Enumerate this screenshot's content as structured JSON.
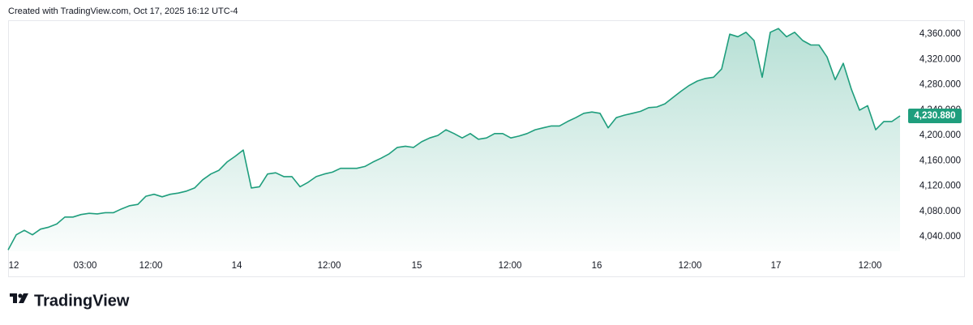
{
  "header": {
    "text": "Created with TradingView.com, Oct 17, 2025 16:12 UTC-4"
  },
  "footer": {
    "brand": "TradingView"
  },
  "chart_data": {
    "type": "area",
    "color": "#1f9e7d",
    "values": [
      4019,
      4043,
      4050,
      4043,
      4052,
      4055,
      4060,
      4071,
      4071,
      4075,
      4077,
      4076,
      4078,
      4078,
      4084,
      4089,
      4091,
      4104,
      4107,
      4103,
      4107,
      4109,
      4112,
      4117,
      4130,
      4139,
      4145,
      4158,
      4167,
      4177,
      4117,
      4119,
      4139,
      4141,
      4135,
      4135,
      4119,
      4126,
      4135,
      4139,
      4142,
      4148,
      4148,
      4148,
      4151,
      4158,
      4164,
      4171,
      4181,
      4183,
      4181,
      4190,
      4196,
      4200,
      4209,
      4203,
      4196,
      4203,
      4194,
      4196,
      4203,
      4203,
      4196,
      4199,
      4203,
      4209,
      4212,
      4215,
      4215,
      4222,
      4228,
      4235,
      4237,
      4235,
      4212,
      4228,
      4232,
      4235,
      4238,
      4244,
      4245,
      4250,
      4260,
      4270,
      4279,
      4286,
      4290,
      4292,
      4305,
      4360,
      4356,
      4363,
      4350,
      4292,
      4363,
      4369,
      4356,
      4363,
      4350,
      4343,
      4343,
      4324,
      4288,
      4314,
      4273,
      4240,
      4247,
      4209,
      4222,
      4222,
      4230.88
    ],
    "xlim": [
      0,
      110
    ],
    "xticks": [
      {
        "value": 0.7,
        "label": "12"
      },
      {
        "value": 9.5,
        "label": "03:00"
      },
      {
        "value": 17.6,
        "label": "12:00"
      },
      {
        "value": 28.2,
        "label": "14"
      },
      {
        "value": 39.6,
        "label": "12:00"
      },
      {
        "value": 50.4,
        "label": "15"
      },
      {
        "value": 61.9,
        "label": "12:00"
      },
      {
        "value": 72.6,
        "label": "16"
      },
      {
        "value": 84.1,
        "label": "12:00"
      },
      {
        "value": 94.7,
        "label": "17"
      },
      {
        "value": 106.3,
        "label": "12:00"
      }
    ],
    "ylim": [
      4017,
      4382
    ],
    "yticks": [
      {
        "value": 4040,
        "label": "4,040.000"
      },
      {
        "value": 4080,
        "label": "4,080.000"
      },
      {
        "value": 4120,
        "label": "4,120.000"
      },
      {
        "value": 4160,
        "label": "4,160.000"
      },
      {
        "value": 4200,
        "label": "4,200.000"
      },
      {
        "value": 4240,
        "label": "4,240.000"
      },
      {
        "value": 4280,
        "label": "4,280.000"
      },
      {
        "value": 4320,
        "label": "4,320.000"
      },
      {
        "value": 4360,
        "label": "4,360.000"
      }
    ],
    "price_label": {
      "value": 4230.88,
      "label": "4,230.880"
    }
  }
}
